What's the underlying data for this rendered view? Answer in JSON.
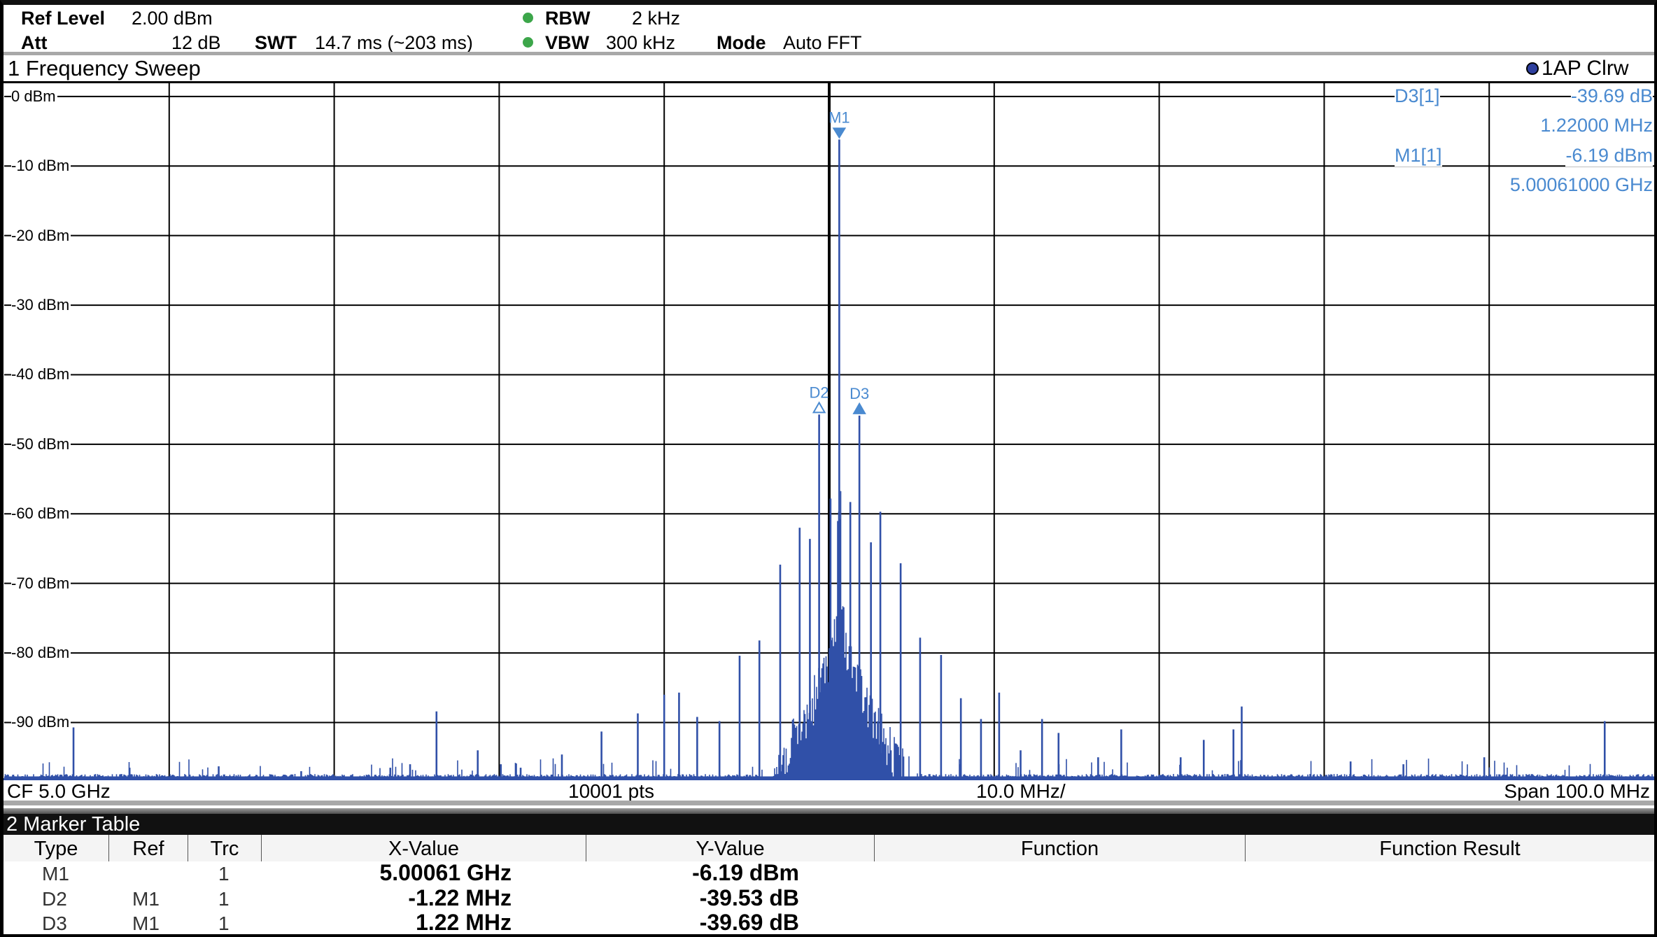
{
  "header": {
    "ref_level_label": "Ref Level",
    "ref_level_value": "2.00 dBm",
    "att_label": "Att",
    "att_value": "12 dB",
    "swt_label": "SWT",
    "swt_value": "14.7 ms (~203 ms)",
    "rbw_label": "RBW",
    "rbw_value": "2 kHz",
    "vbw_label": "VBW",
    "vbw_value": "300 kHz",
    "mode_label": "Mode",
    "mode_value": "Auto FFT",
    "status_dot_color": "#3ca64a"
  },
  "window1": {
    "title": "1 Frequency Sweep",
    "trace_label": "1AP Clrw",
    "trace_dot_color": "#2e3f9e"
  },
  "marker_info": {
    "d3_label": "D3[1]",
    "d3_level": "-39.69 dB",
    "d3_freq": "1.22000 MHz",
    "m1_label": "M1[1]",
    "m1_level": "-6.19 dBm",
    "m1_freq": "5.00061000 GHz"
  },
  "footer": {
    "cf": "CF 5.0 GHz",
    "points": "10001 pts",
    "per_div": "10.0 MHz/",
    "span": "Span 100.0 MHz"
  },
  "chart_data": {
    "type": "line",
    "xlabel": "",
    "ylabel": "",
    "x_unit": "MHz",
    "xlim": [
      4950,
      5050
    ],
    "ylim": [
      -98,
      2
    ],
    "grid": true,
    "y_ticks": [
      "0 dBm",
      "-10 dBm",
      "-20 dBm",
      "-30 dBm",
      "-40 dBm",
      "-50 dBm",
      "-60 dBm",
      "-70 dBm",
      "-80 dBm",
      "-90 dBm"
    ],
    "y_tick_values": [
      0,
      -10,
      -20,
      -30,
      -40,
      -50,
      -60,
      -70,
      -80,
      -90
    ],
    "trace_color": "#3050a8",
    "marker_color": "#4a8ad0",
    "noise_floor_dbm": -98,
    "peaks": [
      {
        "freq": 4954.2,
        "level": -90.7
      },
      {
        "freq": 4957.6,
        "level": -96.5
      },
      {
        "freq": 4963.0,
        "level": -96.3
      },
      {
        "freq": 4968.0,
        "level": -97.0
      },
      {
        "freq": 4973.4,
        "level": -96.5
      },
      {
        "freq": 4974.6,
        "level": -96.0
      },
      {
        "freq": 4976.2,
        "level": -88.4
      },
      {
        "freq": 4978.7,
        "level": -94.0
      },
      {
        "freq": 4980.1,
        "level": -96.0
      },
      {
        "freq": 4981.3,
        "level": -96.5
      },
      {
        "freq": 4983.8,
        "level": -94.6
      },
      {
        "freq": 4986.2,
        "level": -91.3
      },
      {
        "freq": 4988.4,
        "level": -88.7
      },
      {
        "freq": 4990.0,
        "level": -86.0
      },
      {
        "freq": 4990.9,
        "level": -85.7
      },
      {
        "freq": 4992.0,
        "level": -89.2
      },
      {
        "freq": 4993.35,
        "level": -89.8
      },
      {
        "freq": 4994.57,
        "level": -80.4
      },
      {
        "freq": 4995.77,
        "level": -78.2
      },
      {
        "freq": 4997.03,
        "level": -67.3
      },
      {
        "freq": 4998.21,
        "level": -62.0
      },
      {
        "freq": 4998.83,
        "level": -63.6
      },
      {
        "freq": 4999.39,
        "level": -45.72
      },
      {
        "freq": 5000.08,
        "level": -57.8
      },
      {
        "freq": 5000.61,
        "level": -6.19
      },
      {
        "freq": 5001.28,
        "level": -58.3
      },
      {
        "freq": 5001.83,
        "level": -45.88
      },
      {
        "freq": 5002.53,
        "level": -64.1
      },
      {
        "freq": 5003.1,
        "level": -59.7
      },
      {
        "freq": 5004.33,
        "level": -67.1
      },
      {
        "freq": 5005.51,
        "level": -77.8
      },
      {
        "freq": 5006.78,
        "level": -80.3
      },
      {
        "freq": 5007.98,
        "level": -86.5
      },
      {
        "freq": 5009.2,
        "level": -89.5
      },
      {
        "freq": 5010.3,
        "level": -85.7
      },
      {
        "freq": 5011.6,
        "level": -94.0
      },
      {
        "freq": 5012.9,
        "level": -89.5
      },
      {
        "freq": 5013.9,
        "level": -91.5
      },
      {
        "freq": 5016.3,
        "level": -95.0
      },
      {
        "freq": 5017.7,
        "level": -91.0
      },
      {
        "freq": 5021.3,
        "level": -95.0
      },
      {
        "freq": 5022.7,
        "level": -92.5
      },
      {
        "freq": 5024.5,
        "level": -91.0
      },
      {
        "freq": 5025.0,
        "level": -87.7
      },
      {
        "freq": 5031.6,
        "level": -95.6
      },
      {
        "freq": 5034.8,
        "level": -96.0
      },
      {
        "freq": 5039.7,
        "level": -95.0
      },
      {
        "freq": 5047.0,
        "level": -89.8
      }
    ],
    "markers": [
      {
        "name": "M1",
        "freq": 5000.61,
        "level": -6.19,
        "symbol": "filled-down"
      },
      {
        "name": "D2",
        "freq": 4999.39,
        "level": -45.72,
        "symbol": "hollow-up"
      },
      {
        "name": "D3",
        "freq": 5001.83,
        "level": -45.88,
        "symbol": "filled-up"
      }
    ]
  },
  "marker_table": {
    "title": "2 Marker Table",
    "columns": [
      "Type",
      "Ref",
      "Trc",
      "X-Value",
      "Y-Value",
      "Function",
      "Function Result"
    ],
    "rows": [
      {
        "type": "M1",
        "ref": "",
        "trc": "1",
        "x": "5.00061 GHz",
        "y": "-6.19 dBm",
        "function": "",
        "result": ""
      },
      {
        "type": "D2",
        "ref": "M1",
        "trc": "1",
        "x": "-1.22 MHz",
        "y": "-39.53 dB",
        "function": "",
        "result": ""
      },
      {
        "type": "D3",
        "ref": "M1",
        "trc": "1",
        "x": "1.22 MHz",
        "y": "-39.69 dB",
        "function": "",
        "result": ""
      }
    ]
  }
}
